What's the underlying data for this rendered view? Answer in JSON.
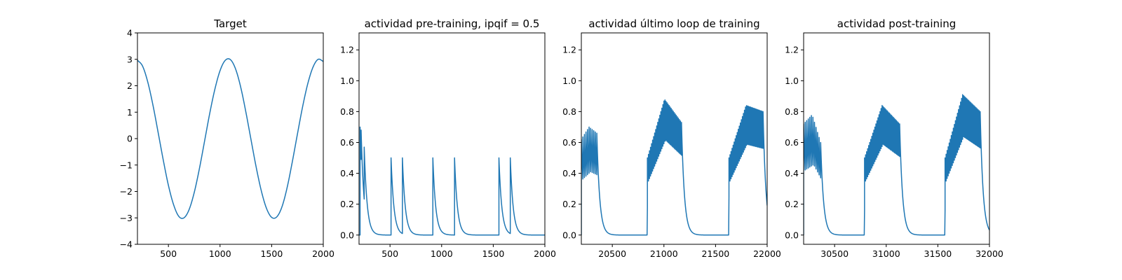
{
  "colors": {
    "series": "#1f77b4",
    "axis": "#000000",
    "background": "#ffffff"
  },
  "chart_data": [
    {
      "type": "line",
      "title": "Target",
      "xlabel": "",
      "ylabel": "",
      "xlim": [
        200,
        2000
      ],
      "ylim": [
        -4,
        4
      ],
      "xticks": [
        500,
        1000,
        1500,
        2000
      ],
      "yticks": [
        -4,
        -3,
        -2,
        -1,
        0,
        1,
        2,
        3,
        4
      ],
      "grid": false,
      "series": [
        {
          "x": [
            200,
            250,
            300,
            350,
            400,
            450,
            500,
            550,
            600,
            650,
            700,
            750,
            800,
            850,
            900,
            950,
            1000,
            1050,
            1100,
            1150,
            1200,
            1250,
            1300,
            1350,
            1400,
            1450,
            1500,
            1550,
            1600,
            1650,
            1700,
            1750,
            1800,
            1850,
            1900,
            1950,
            2000
          ],
          "values": [
            2.97,
            2.74,
            2.14,
            1.27,
            0.24,
            -0.81,
            -1.77,
            -2.5,
            -2.94,
            -3.0,
            -2.69,
            -2.04,
            -1.14,
            -0.1,
            0.95,
            1.87,
            2.57,
            2.96,
            2.99,
            2.64,
            1.95,
            1.01,
            -0.04,
            -1.08,
            -1.98,
            -2.64,
            -2.98,
            -2.96,
            -2.58,
            -1.85,
            -0.88,
            0.18,
            1.21,
            2.08,
            2.7,
            3.0,
            2.92
          ]
        }
      ]
    },
    {
      "type": "line",
      "title": "actividad pre-training, ipqif = 0.5",
      "xlabel": "",
      "ylabel": "",
      "xlim": [
        200,
        2000
      ],
      "ylim": [
        -0.06,
        1.31
      ],
      "xticks": [
        500,
        1000,
        1500,
        2000
      ],
      "yticks": [
        0.0,
        0.2,
        0.4,
        0.6,
        0.8,
        1.0,
        1.2
      ],
      "grid": false,
      "spikes": [
        {
          "x": 210,
          "peak": 0.7
        },
        {
          "x": 220,
          "peak": 0.68
        },
        {
          "x": 250,
          "peak": 0.57
        },
        {
          "x": 510,
          "peak": 0.5
        },
        {
          "x": 620,
          "peak": 0.5
        },
        {
          "x": 915,
          "peak": 0.5
        },
        {
          "x": 1125,
          "peak": 0.5
        },
        {
          "x": 1555,
          "peak": 0.5
        },
        {
          "x": 1665,
          "peak": 0.5
        }
      ]
    },
    {
      "type": "line",
      "title": "actividad último loop de training",
      "xlabel": "",
      "ylabel": "",
      "xlim": [
        20200,
        22000
      ],
      "ylim": [
        -0.06,
        1.31
      ],
      "xticks": [
        20500,
        21000,
        21500,
        22000
      ],
      "yticks": [
        0.0,
        0.2,
        0.4,
        0.6,
        0.8,
        1.0,
        1.2
      ],
      "grid": false,
      "bursts": [
        {
          "start": 20200,
          "end": 20355,
          "spacing": 15,
          "peak_start": 0.62,
          "peak_mid": 0.7,
          "peak_end": 0.66,
          "trough_start": 0.05,
          "trough_mid": 0.1,
          "trough_end": 0.15
        },
        {
          "start": 20840,
          "end": 21170,
          "spacing": 10,
          "peak_start": 0.5,
          "peak_mid": 0.88,
          "peak_end": 0.73,
          "trough_start": 0.18,
          "trough_mid": 0.38,
          "trough_end": 0.26
        },
        {
          "start": 21630,
          "end": 21960,
          "spacing": 10,
          "peak_start": 0.5,
          "peak_mid": 0.84,
          "peak_end": 0.8,
          "trough_start": 0.25,
          "trough_mid": 0.4,
          "trough_end": 0.28
        }
      ]
    },
    {
      "type": "line",
      "title": "actividad post-training",
      "xlabel": "",
      "ylabel": "",
      "xlim": [
        30200,
        32000
      ],
      "ylim": [
        -0.06,
        1.31
      ],
      "xticks": [
        30500,
        31000,
        31500,
        32000
      ],
      "yticks": [
        0.0,
        0.2,
        0.4,
        0.6,
        0.8,
        1.0,
        1.2
      ],
      "grid": false,
      "bursts": [
        {
          "start": 30200,
          "end": 30370,
          "spacing": 15,
          "peak_start": 0.72,
          "peak_mid": 0.78,
          "peak_end": 0.6,
          "trough_start": 0.28,
          "trough_mid": 0.25,
          "trough_end": 0.15
        },
        {
          "start": 30790,
          "end": 31130,
          "spacing": 10,
          "peak_start": 0.5,
          "peak_mid": 0.84,
          "peak_end": 0.72,
          "trough_start": 0.16,
          "trough_mid": 0.38,
          "trough_end": 0.26
        },
        {
          "start": 31570,
          "end": 31910,
          "spacing": 10,
          "peak_start": 0.5,
          "peak_mid": 0.91,
          "peak_end": 0.8,
          "trough_start": 0.16,
          "trough_mid": 0.42,
          "trough_end": 0.18
        }
      ]
    }
  ]
}
